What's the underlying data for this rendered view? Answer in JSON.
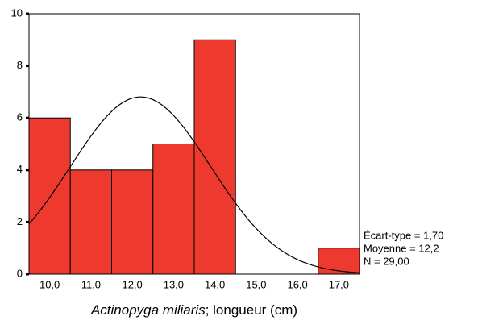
{
  "chart_data": {
    "type": "histogram",
    "bins": [
      9.5,
      10.5,
      11.5,
      12.5,
      13.5,
      14.5,
      15.5,
      16.5,
      17.5
    ],
    "values": [
      6,
      4,
      4,
      5,
      9,
      0,
      0,
      1
    ],
    "color": "#ee3a2e",
    "xlim": [
      9.5,
      17.5
    ],
    "xticks": [
      {
        "value": 10,
        "label": "10,0"
      },
      {
        "value": 11,
        "label": "11,0"
      },
      {
        "value": 12,
        "label": "12,0"
      },
      {
        "value": 13,
        "label": "13,0"
      },
      {
        "value": 14,
        "label": "14,0"
      },
      {
        "value": 15,
        "label": "15,0"
      },
      {
        "value": 16,
        "label": "16,0"
      },
      {
        "value": 17,
        "label": "17,0"
      }
    ],
    "ylim": [
      0,
      10
    ],
    "yticks": [
      0,
      2,
      4,
      6,
      8,
      10
    ],
    "x_label": [
      "Actinopyga miliaris",
      "; longueur (cm)"
    ],
    "normal_curve": true,
    "stats": {
      "sd": {
        "value": 1.7,
        "label": "Écart-type = 1,70"
      },
      "mean": {
        "value": 12.2,
        "label": "Moyenne = 12,2"
      },
      "n": {
        "value": 29,
        "label": "N = 29,00"
      }
    }
  }
}
